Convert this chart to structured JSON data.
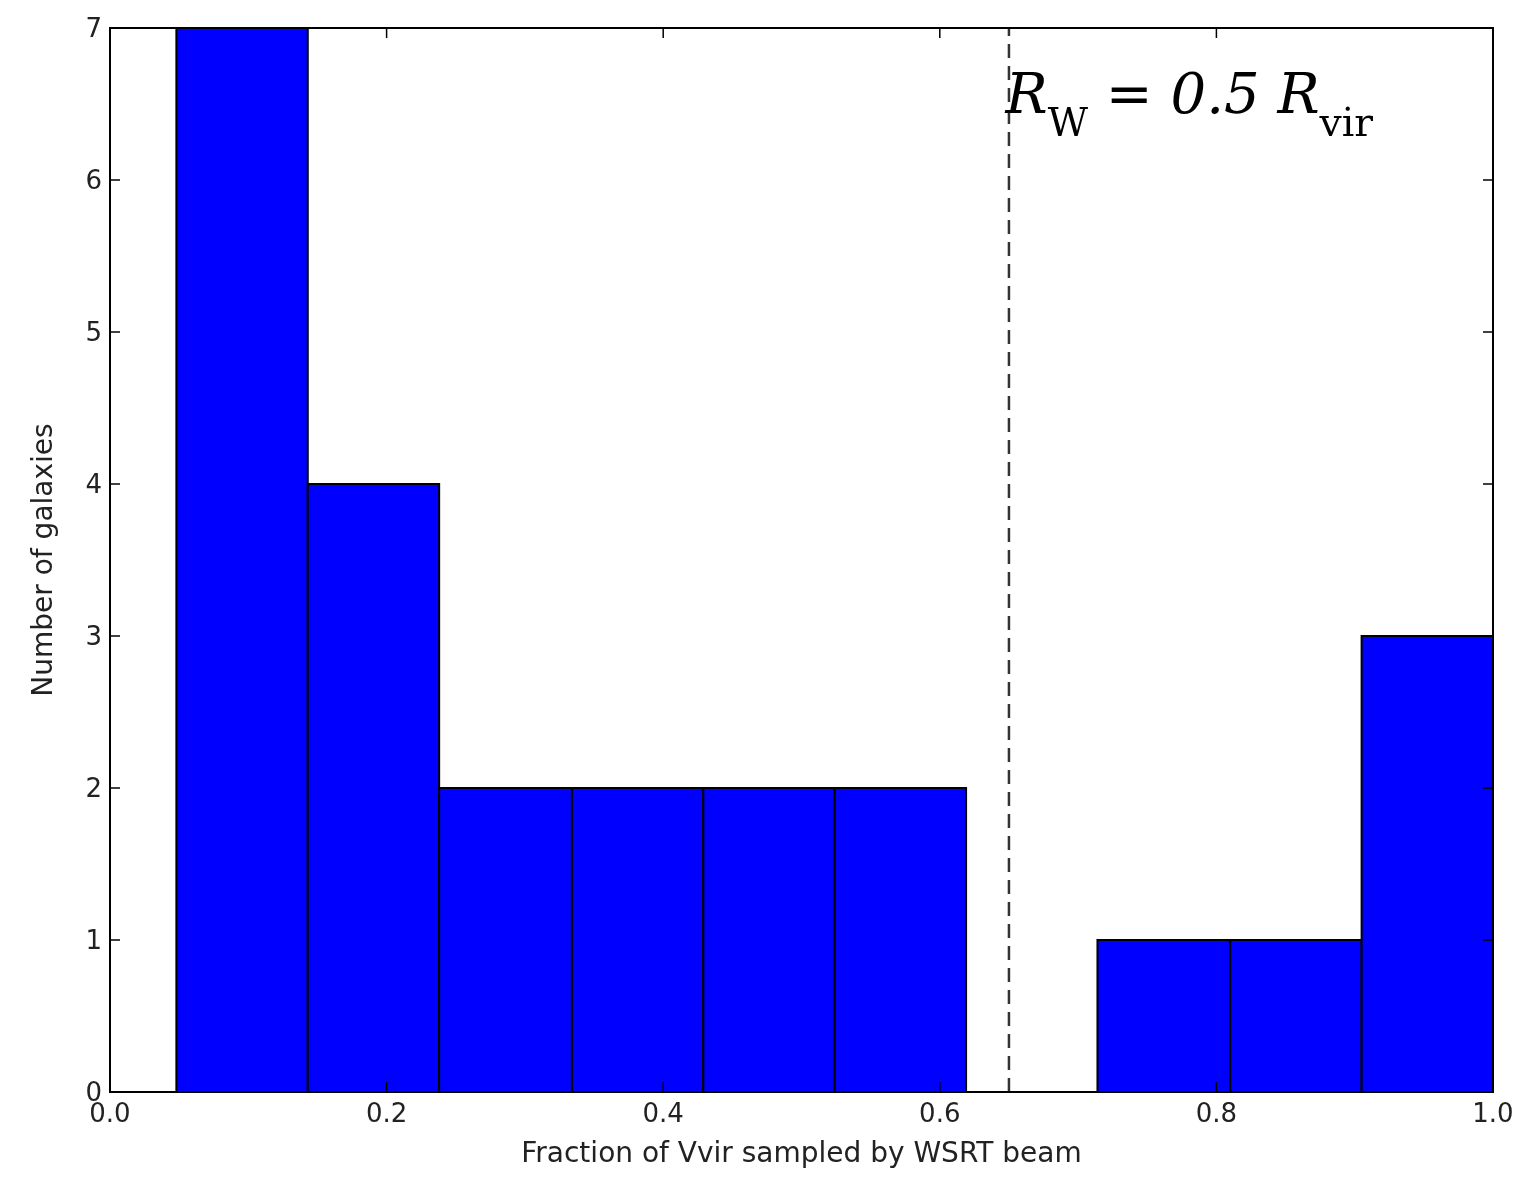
{
  "chart_data": {
    "type": "histogram",
    "xlabel": "Fraction of Vvir sampled by WSRT beam",
    "ylabel": "Number of galaxies",
    "bins": [
      0.048,
      0.143,
      0.238,
      0.334,
      0.429,
      0.524,
      0.619,
      0.714,
      0.81,
      0.905,
      1.0
    ],
    "values": [
      7,
      4,
      2,
      2,
      2,
      2,
      0,
      1,
      1,
      3
    ],
    "color": "#0000ff",
    "xlim": [
      0,
      1
    ],
    "xticks": [
      {
        "value": 0,
        "label": "0.0"
      },
      0.2,
      0.4,
      0.6,
      0.8,
      {
        "value": 1,
        "label": "1.0"
      }
    ],
    "ylim": [
      0,
      7
    ],
    "yticks": [
      0,
      1,
      2,
      3,
      4,
      5,
      6,
      7
    ],
    "ref_lines": [
      {
        "axis": "x",
        "value": 0.65,
        "label": null,
        "color": "#333333",
        "line_style": "dashed"
      }
    ],
    "annotations": [
      "R$_{W}$ = 0.5 R$_{vir}$"
    ],
    "grid": false
  }
}
